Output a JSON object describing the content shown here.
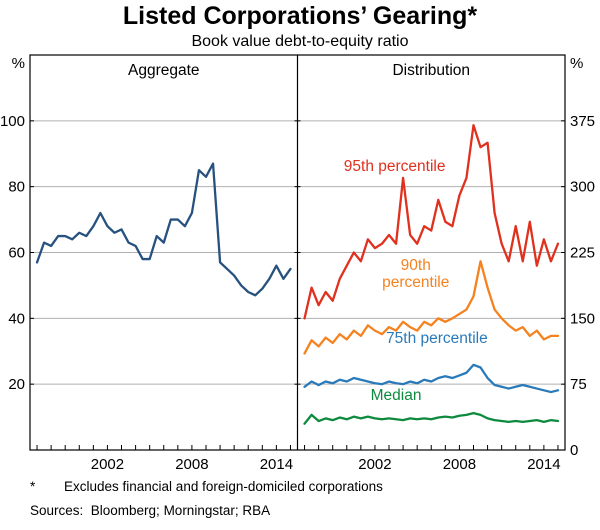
{
  "page": {
    "title": "Listed Corporations’ Gearing*",
    "subtitle": "Book value debt-to-equity ratio",
    "footnote_marker": "*",
    "footnote_text": "Excludes financial and foreign-domiciled corporations",
    "sources": "Sources:  Bloomberg; Morningstar; RBA"
  },
  "chart_data": {
    "type": "line",
    "title": "Listed Corporations’ Gearing*",
    "subtitle": "Book value debt-to-equity ratio",
    "x_range": [
      1996.5,
      2015.5
    ],
    "x": [
      1997,
      1997.5,
      1998,
      1998.5,
      1999,
      1999.5,
      2000,
      2000.5,
      2001,
      2001.5,
      2002,
      2002.5,
      2003,
      2003.5,
      2004,
      2004.5,
      2005,
      2005.5,
      2006,
      2006.5,
      2007,
      2007.5,
      2008,
      2008.5,
      2009,
      2009.5,
      2010,
      2010.5,
      2011,
      2011.5,
      2012,
      2012.5,
      2013,
      2013.5,
      2014,
      2014.5,
      2015
    ],
    "x_ticks_labeled": [
      2002,
      2008,
      2014
    ],
    "x_tick_years_minor_step": 1,
    "left_axis": {
      "unit": "%",
      "min": 0,
      "max": 120,
      "ticks": [
        20,
        40,
        60,
        80,
        100
      ]
    },
    "right_axis": {
      "unit": "%",
      "min": 0,
      "max": 450,
      "ticks": [
        0,
        75,
        150,
        225,
        300,
        375
      ]
    },
    "grid": true,
    "colors": {
      "grid": "#b0b0b0",
      "frame": "#000000"
    },
    "panels": [
      {
        "title": "Aggregate",
        "axis": "left",
        "series": [
          {
            "name": "Aggregate",
            "color": "#27517f",
            "values": [
              57,
              63,
              62,
              65,
              65,
              64,
              66,
              65,
              68,
              72,
              68,
              66,
              67,
              63,
              62,
              58,
              58,
              65,
              63,
              70,
              70,
              68,
              72,
              85,
              83,
              87,
              57,
              55,
              53,
              50,
              48,
              47,
              49,
              52,
              56,
              52,
              55
            ]
          }
        ]
      },
      {
        "title": "Distribution",
        "axis": "right",
        "series": [
          {
            "name": "95th percentile",
            "color": "#e0301e",
            "values": [
              150,
              185,
              165,
              180,
              170,
              195,
              210,
              225,
              215,
              240,
              230,
              235,
              245,
              235,
              310,
              245,
              235,
              255,
              250,
              285,
              260,
              255,
              290,
              310,
              370,
              345,
              350,
              270,
              235,
              215,
              255,
              215,
              260,
              210,
              240,
              215,
              235
            ]
          },
          {
            "name": "90th percentile",
            "color": "#f5821f",
            "values": [
              110,
              125,
              118,
              128,
              122,
              132,
              126,
              136,
              130,
              142,
              136,
              132,
              140,
              136,
              146,
              140,
              136,
              146,
              142,
              150,
              146,
              150,
              155,
              160,
              175,
              215,
              185,
              160,
              150,
              142,
              136,
              140,
              130,
              136,
              126,
              130,
              130
            ]
          },
          {
            "name": "75th percentile",
            "color": "#2a7ab9",
            "values": [
              72,
              78,
              74,
              78,
              76,
              80,
              78,
              82,
              80,
              78,
              76,
              75,
              78,
              76,
              75,
              78,
              76,
              80,
              78,
              82,
              84,
              82,
              85,
              88,
              97,
              94,
              82,
              74,
              72,
              70,
              72,
              74,
              72,
              70,
              68,
              66,
              68
            ]
          },
          {
            "name": "Median",
            "color": "#0e8a3e",
            "values": [
              30,
              40,
              33,
              36,
              34,
              37,
              35,
              38,
              36,
              38,
              36,
              35,
              36,
              35,
              34,
              36,
              35,
              36,
              35,
              37,
              38,
              37,
              39,
              40,
              42,
              40,
              36,
              34,
              33,
              32,
              33,
              32,
              33,
              34,
              32,
              34,
              33
            ]
          }
        ]
      }
    ],
    "annotations": [
      {
        "panel": 1,
        "lines": [
          "95th percentile"
        ],
        "x": 2003.4,
        "y": 318,
        "color": "#e0301e"
      },
      {
        "panel": 1,
        "lines": [
          "90th",
          "percentile"
        ],
        "x": 2004.9,
        "y": 205,
        "color": "#f5821f"
      },
      {
        "panel": 1,
        "lines": [
          "75th percentile"
        ],
        "x": 2006.4,
        "y": 122,
        "color": "#2a7ab9"
      },
      {
        "panel": 1,
        "lines": [
          "Median"
        ],
        "x": 2003.5,
        "y": 57,
        "color": "#0e8a3e"
      }
    ]
  }
}
